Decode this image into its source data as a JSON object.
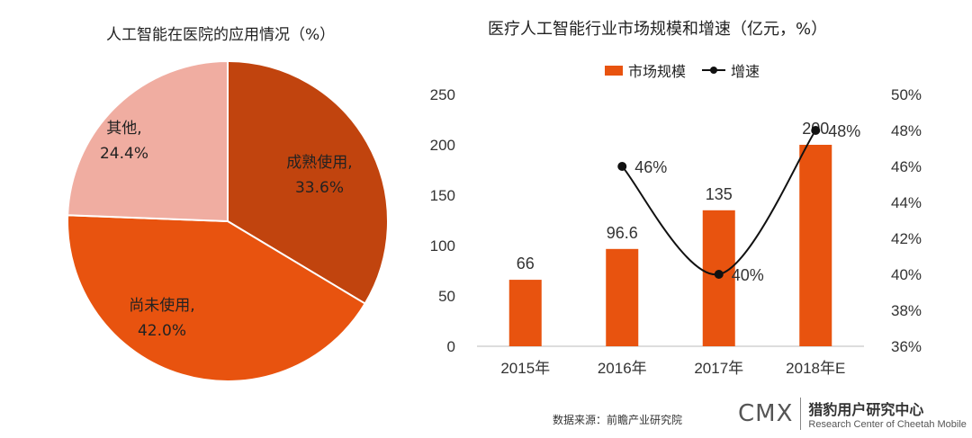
{
  "pie_title": "人工智能在医院的应用情况（%）",
  "bar_title": "医疗人工智能行业市场规模和增速（亿元，%）",
  "legend": {
    "bar": "市场规模",
    "line": "增速"
  },
  "source": "数据来源：前瞻产业研究院",
  "brand": {
    "mark": "CMX",
    "name_cn": "猎豹用户研究中心",
    "name_en": "Research Center of Cheetah Mobile"
  },
  "colors": {
    "bar": "#e8530f",
    "line": "#111111"
  },
  "chart_data": [
    {
      "type": "pie",
      "title": "人工智能在医院的应用情况（%）",
      "slices": [
        {
          "name": "成熟使用",
          "value": 33.6,
          "label": "33.6%",
          "color": "#c1440e"
        },
        {
          "name": "尚未使用",
          "value": 42.0,
          "label": "42.0%",
          "color": "#e8530f"
        },
        {
          "name": "其他",
          "value": 24.4,
          "label": "24.4%",
          "color": "#f0ada1"
        }
      ]
    },
    {
      "type": "bar",
      "title": "医疗人工智能行业市场规模和增速（亿元，%）",
      "categories": [
        "2015年",
        "2016年",
        "2017年",
        "2018年E"
      ],
      "series": [
        {
          "name": "市场规模",
          "type": "bar",
          "axis": "left",
          "values": [
            66,
            96.6,
            135,
            200
          ],
          "labels": [
            "66",
            "96.6",
            "135",
            "200"
          ]
        },
        {
          "name": "增速",
          "type": "line",
          "axis": "right",
          "values": [
            null,
            46,
            40,
            48
          ],
          "labels": [
            "",
            "46%",
            "40%",
            "48%"
          ]
        }
      ],
      "ylim": [
        0,
        250
      ],
      "yticks": [
        "0",
        "50",
        "100",
        "150",
        "200",
        "250"
      ],
      "y2lim": [
        36,
        50
      ],
      "y2ticks": [
        "36%",
        "38%",
        "40%",
        "42%",
        "44%",
        "46%",
        "48%",
        "50%"
      ],
      "legend_position": "top-center"
    }
  ]
}
